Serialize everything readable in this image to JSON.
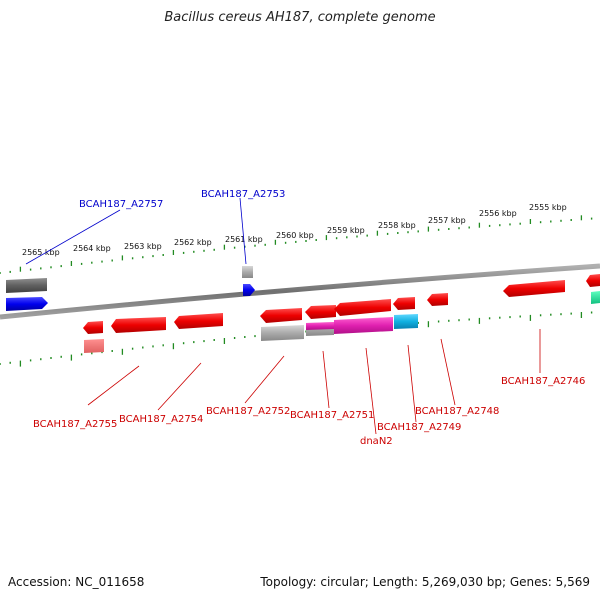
{
  "title": "Bacillus cereus AH187, complete genome",
  "accession": "Accession: NC_011658",
  "topology": "Topology: circular; Length: 5,269,030 bp; Genes: 5,569",
  "kbp_ticks": [
    "2565 kbp",
    "2564 kbp",
    "2563 kbp",
    "2562 kbp",
    "2561 kbp",
    "2560 kbp",
    "2559 kbp",
    "2558 kbp",
    "2557 kbp",
    "2556 kbp",
    "2555 kbp"
  ],
  "gene_labels": {
    "a2757": "BCAH187_A2757",
    "a2753": "BCAH187_A2753",
    "a2755": "BCAH187_A2755",
    "a2754": "BCAH187_A2754",
    "a2752": "BCAH187_A2752",
    "a2751": "BCAH187_A2751",
    "dnan2": "dnaN2",
    "a2749": "BCAH187_A2749",
    "a2748": "BCAH187_A2748",
    "a2746": "BCAH187_A2746"
  },
  "colors": {
    "forward_label": "#0000cc",
    "reverse_label": "#cc0000",
    "tick": "#228b22",
    "backbone": "#808080",
    "gene_red": "#ee0000",
    "gene_blue": "#0000ee",
    "gene_gray": "#999999",
    "gene_magenta": "#e020b0",
    "gene_cyan": "#10b0e0",
    "gene_green": "#10d890"
  }
}
